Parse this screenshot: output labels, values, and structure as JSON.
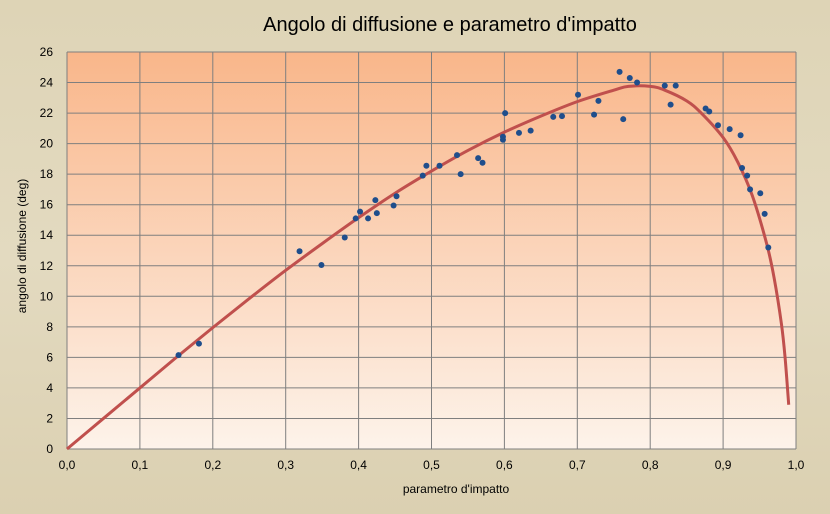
{
  "chart_data": {
    "type": "scatter",
    "title": "Angolo di diffusione e parametro d'impatto",
    "xlabel": "parametro d'impatto",
    "ylabel": "angolo di diffusione (deg)",
    "xlim": [
      0,
      1
    ],
    "ylim": [
      0,
      26
    ],
    "x_ticks": [
      "0,0",
      "0,1",
      "0,2",
      "0,3",
      "0,4",
      "0,5",
      "0,6",
      "0,7",
      "0,8",
      "0,9",
      "1,0"
    ],
    "y_ticks": [
      "0",
      "2",
      "4",
      "6",
      "8",
      "10",
      "12",
      "14",
      "16",
      "18",
      "20",
      "22",
      "24",
      "26"
    ],
    "grid": true,
    "legend": "none",
    "colors": {
      "plot_top": "#f9b68a",
      "plot_bottom": "#fdf3ea",
      "grid": "#7f7f7f",
      "points": "#1f4e8c",
      "curve": "#c0504d"
    },
    "series": [
      {
        "type": "scatter",
        "points": [
          [
            0.153,
            6.15
          ],
          [
            0.181,
            6.9
          ],
          [
            0.319,
            12.95
          ],
          [
            0.349,
            12.05
          ],
          [
            0.381,
            13.85
          ],
          [
            0.396,
            15.1
          ],
          [
            0.402,
            15.55
          ],
          [
            0.413,
            15.1
          ],
          [
            0.423,
            16.3
          ],
          [
            0.425,
            15.45
          ],
          [
            0.448,
            15.95
          ],
          [
            0.452,
            16.55
          ],
          [
            0.488,
            17.9
          ],
          [
            0.493,
            18.55
          ],
          [
            0.511,
            18.55
          ],
          [
            0.535,
            19.25
          ],
          [
            0.54,
            18.0
          ],
          [
            0.564,
            19.05
          ],
          [
            0.57,
            18.75
          ],
          [
            0.598,
            20.25
          ],
          [
            0.598,
            20.45
          ],
          [
            0.601,
            22.0
          ],
          [
            0.62,
            20.7
          ],
          [
            0.636,
            20.85
          ],
          [
            0.667,
            21.75
          ],
          [
            0.679,
            21.8
          ],
          [
            0.701,
            23.2
          ],
          [
            0.723,
            21.9
          ],
          [
            0.729,
            22.8
          ],
          [
            0.758,
            24.7
          ],
          [
            0.763,
            21.6
          ],
          [
            0.772,
            24.3
          ],
          [
            0.782,
            24.0
          ],
          [
            0.82,
            23.8
          ],
          [
            0.828,
            22.55
          ],
          [
            0.835,
            23.8
          ],
          [
            0.876,
            22.3
          ],
          [
            0.881,
            22.1
          ],
          [
            0.893,
            21.2
          ],
          [
            0.909,
            20.95
          ],
          [
            0.924,
            20.55
          ],
          [
            0.926,
            18.4
          ],
          [
            0.933,
            17.9
          ],
          [
            0.937,
            17.0
          ],
          [
            0.951,
            16.75
          ],
          [
            0.957,
            15.4
          ],
          [
            0.962,
            13.2
          ]
        ]
      },
      {
        "type": "line",
        "points": [
          [
            0.0,
            0.0
          ],
          [
            0.05,
            2.0
          ],
          [
            0.1,
            4.0
          ],
          [
            0.15,
            6.0
          ],
          [
            0.2,
            7.95
          ],
          [
            0.25,
            9.85
          ],
          [
            0.3,
            11.7
          ],
          [
            0.35,
            13.45
          ],
          [
            0.4,
            15.15
          ],
          [
            0.45,
            16.75
          ],
          [
            0.5,
            18.2
          ],
          [
            0.55,
            19.55
          ],
          [
            0.6,
            20.75
          ],
          [
            0.65,
            21.8
          ],
          [
            0.7,
            22.75
          ],
          [
            0.75,
            23.5
          ],
          [
            0.77,
            23.75
          ],
          [
            0.8,
            23.75
          ],
          [
            0.82,
            23.5
          ],
          [
            0.85,
            22.8
          ],
          [
            0.87,
            22.0
          ],
          [
            0.9,
            20.4
          ],
          [
            0.92,
            18.8
          ],
          [
            0.94,
            16.6
          ],
          [
            0.96,
            13.4
          ],
          [
            0.97,
            11.2
          ],
          [
            0.98,
            8.2
          ],
          [
            0.985,
            6.0
          ],
          [
            0.99,
            2.9
          ]
        ]
      }
    ]
  }
}
